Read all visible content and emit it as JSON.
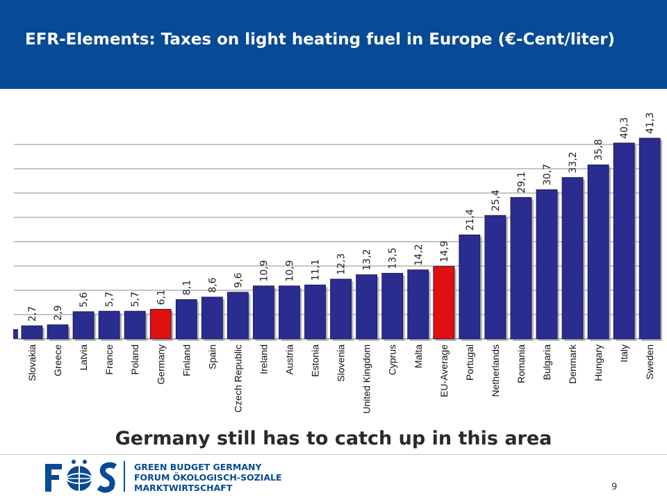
{
  "header": {
    "title": "EFR-Elements: Taxes on light heating fuel in Europe (€-Cent/liter)"
  },
  "subtitle": "Germany still has to catch up in this area",
  "colors": {
    "header_bg": "#074a95",
    "bar": "#2b2c8f",
    "highlight": "#e01010",
    "grid": "#8a8a8a"
  },
  "chart_data": {
    "type": "bar",
    "categories": [
      "Slovakia",
      "Greece",
      "Latvia",
      "France",
      "Poland",
      "Germany",
      "Finland",
      "Spain",
      "Czech Republic",
      "Ireland",
      "Austria",
      "Estonia",
      "Slovenia",
      "United Kingdom",
      "Cyprus",
      "Malta",
      "EU-Average",
      "Portugal",
      "Netherlands",
      "Romania",
      "Bulgaria",
      "Denmark",
      "Hungary",
      "Italy",
      "Sweden"
    ],
    "values": [
      2.7,
      2.9,
      5.6,
      5.7,
      5.7,
      6.1,
      8.1,
      8.6,
      9.6,
      10.9,
      10.9,
      11.1,
      12.3,
      13.2,
      13.5,
      14.2,
      14.9,
      21.4,
      25.4,
      29.1,
      30.7,
      33.2,
      35.8,
      40.3,
      41.3
    ],
    "value_labels": [
      "2,7",
      "2,9",
      "5,6",
      "5,7",
      "5,7",
      "6,1",
      "8,1",
      "8,6",
      "9,6",
      "10,9",
      "10,9",
      "11,1",
      "12,3",
      "13,2",
      "13,5",
      "14,2",
      "14,9",
      "21,4",
      "25,4",
      "29,1",
      "30,7",
      "33,2",
      "35,8",
      "40,3",
      "41,3"
    ],
    "highlighted": [
      "Germany",
      "EU-Average"
    ],
    "ylim": [
      0,
      45
    ],
    "grid": true,
    "legend": "none"
  },
  "logo": {
    "name": "FÖS",
    "lines": [
      "GREEN BUDGET GERMANY",
      "FORUM ÖKOLOGISCH-SOZIALE",
      "MARKTWIRTSCHAFT"
    ]
  },
  "page_number": "9"
}
